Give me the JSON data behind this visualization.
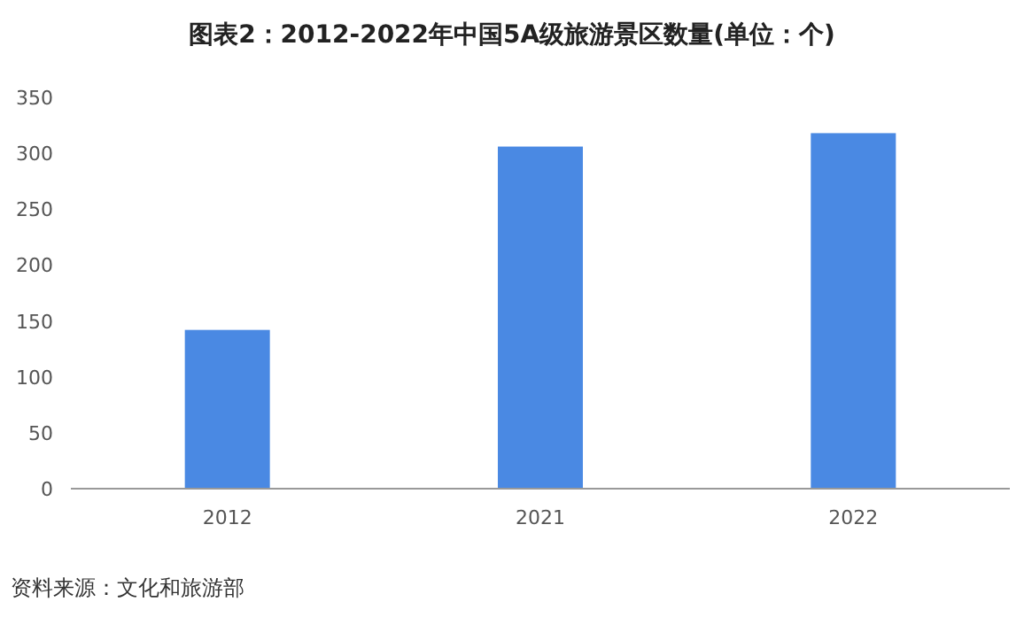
{
  "chart_data": {
    "type": "bar",
    "title": "图表2：2012-2022年中国5A级旅游景区数量(单位：个)",
    "categories": [
      "2012",
      "2021",
      "2022"
    ],
    "values": [
      142,
      306,
      318
    ],
    "color": "#4a89e3",
    "ylim": [
      0,
      350
    ],
    "yticks": [
      0,
      50,
      100,
      150,
      200,
      250,
      300,
      350
    ],
    "annotations": [
      "资料来源：文化和旅游部"
    ]
  }
}
